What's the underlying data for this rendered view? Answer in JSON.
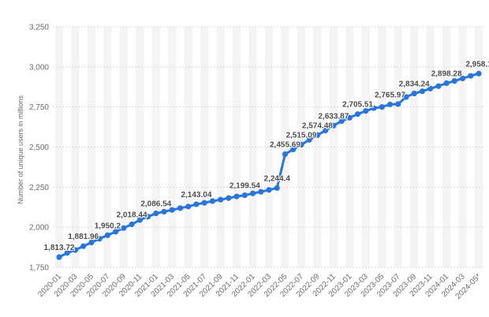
{
  "chart_data": {
    "type": "line",
    "ylabel": "Number of unique users in millions",
    "ylim": [
      1750,
      3250
    ],
    "yticks": [
      "1,750",
      "2,000",
      "2,250",
      "2,500",
      "2,750",
      "3,000",
      "3,250"
    ],
    "ytick_values": [
      1750,
      2000,
      2250,
      2500,
      2750,
      3000,
      3250
    ],
    "x": [
      "2020-01",
      "2020-02",
      "2020-03",
      "2020-04",
      "2020-05",
      "2020-06",
      "2020-07",
      "2020-08",
      "2020-09",
      "2020-10",
      "2020-11",
      "2020-12",
      "2021-01",
      "2021-02",
      "2021-03",
      "2021-04",
      "2021-05",
      "2021-06",
      "2021-07",
      "2021-08",
      "2021-09",
      "2021-10",
      "2021-11",
      "2021-12",
      "2022-01",
      "2022-02",
      "2022-03",
      "2022-04",
      "2022-05",
      "2022-06",
      "2022-07",
      "2022-08",
      "2022-09",
      "2022-10",
      "2022-11",
      "2022-12",
      "2023-01",
      "2023-02",
      "2023-03",
      "2023-04",
      "2023-05",
      "2023-06",
      "2023-07",
      "2023-08",
      "2023-09",
      "2023-10",
      "2023-11",
      "2023-12",
      "2024-01",
      "2024-02",
      "2024-03",
      "2024-04",
      "2024-05"
    ],
    "xtick_labels": [
      "2020-01",
      "2020-03",
      "2020-05",
      "2020-07",
      "2020-09",
      "2020-11",
      "2021-01",
      "2021-03",
      "2021-05",
      "2021-07",
      "2021-09",
      "2021-11",
      "2022-01",
      "2022-03",
      "2022-05",
      "2022-07",
      "2022-09",
      "2022-11",
      "2023-01",
      "2023-03",
      "2023-05",
      "2023-07",
      "2023-09",
      "2023-11",
      "2024-01",
      "2024-03",
      "2024-05*"
    ],
    "values": [
      1813.72,
      1840,
      1858,
      1881.96,
      1905,
      1928,
      1950.2,
      1972,
      1995,
      2018.44,
      2045,
      2066,
      2086.54,
      2097,
      2108,
      2119,
      2129,
      2143.04,
      2152,
      2163,
      2172,
      2182,
      2192,
      2199.54,
      2211,
      2221,
      2233,
      2244.4,
      2455.69,
      2485,
      2515.09,
      2545,
      2574.48,
      2603,
      2633.87,
      2662,
      2683,
      2705.51,
      2725,
      2743,
      2750,
      2765.97,
      2768,
      2812,
      2834.24,
      2848,
      2865,
      2880,
      2898.28,
      2912,
      2928,
      2944,
      2958.1
    ],
    "data_labels": [
      {
        "i": 0,
        "text": "1,813.72"
      },
      {
        "i": 3,
        "text": "1,881.96"
      },
      {
        "i": 6,
        "text": "1,950.2"
      },
      {
        "i": 9,
        "text": "2,018.44"
      },
      {
        "i": 12,
        "text": "2,086.54"
      },
      {
        "i": 17,
        "text": "2,143.04"
      },
      {
        "i": 23,
        "text": "2,199.54"
      },
      {
        "i": 27,
        "text": "2,244.4"
      },
      {
        "i": 28,
        "text": "2,455.69"
      },
      {
        "i": 30,
        "text": "2,515.09"
      },
      {
        "i": 32,
        "text": "2,574.48"
      },
      {
        "i": 34,
        "text": "2,633.87"
      },
      {
        "i": 37,
        "text": "2,705.51"
      },
      {
        "i": 41,
        "text": "2,765.97"
      },
      {
        "i": 44,
        "text": "2,834.24"
      },
      {
        "i": 48,
        "text": "2,898.28"
      },
      {
        "i": 52,
        "text": "2,958.1"
      }
    ],
    "grid": true,
    "colors": {
      "line": "#2876dd",
      "band": "#f4f4f4",
      "grid": "#d9d9d9",
      "text": "#6b6b6b"
    }
  }
}
